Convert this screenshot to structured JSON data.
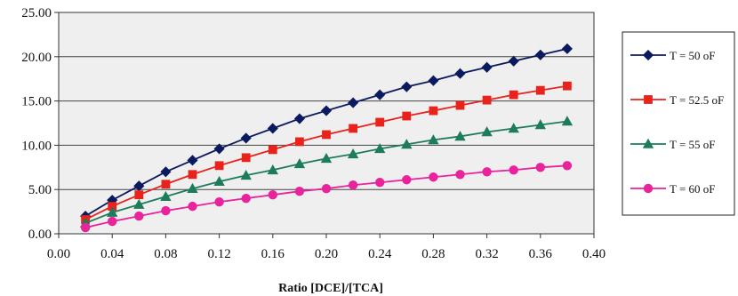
{
  "chart_data": {
    "type": "line",
    "title": "",
    "xlabel": "Ratio [DCE]/[TCA]",
    "ylabel": "",
    "xlim": [
      0.0,
      0.4
    ],
    "ylim": [
      0.0,
      25.0
    ],
    "x_ticks": [
      "0.00",
      "0.04",
      "0.08",
      "0.12",
      "0.16",
      "0.20",
      "0.24",
      "0.28",
      "0.32",
      "0.36",
      "0.40"
    ],
    "y_ticks": [
      "0.00",
      "5.00",
      "10.00",
      "15.00",
      "20.00",
      "25.00"
    ],
    "grid": "horizontal",
    "legend_position": "right",
    "x": [
      0.02,
      0.04,
      0.06,
      0.08,
      0.1,
      0.12,
      0.14,
      0.16,
      0.18,
      0.2,
      0.22,
      0.24,
      0.26,
      0.28,
      0.3,
      0.32,
      0.34,
      0.36,
      0.38
    ],
    "series": [
      {
        "name": "T = 50 oF",
        "color": "#0b1a5e",
        "marker": "diamond",
        "values": [
          2.0,
          3.8,
          5.4,
          7.0,
          8.3,
          9.6,
          10.8,
          11.9,
          13.0,
          13.9,
          14.8,
          15.7,
          16.6,
          17.3,
          18.1,
          18.8,
          19.5,
          20.2,
          20.9
        ]
      },
      {
        "name": "T = 52.5 oF",
        "color": "#e8231c",
        "marker": "square",
        "values": [
          1.6,
          3.1,
          4.4,
          5.6,
          6.7,
          7.7,
          8.6,
          9.5,
          10.4,
          11.2,
          11.9,
          12.6,
          13.3,
          13.9,
          14.5,
          15.1,
          15.7,
          16.2,
          16.7
        ]
      },
      {
        "name": "T = 55 oF",
        "color": "#1d7c5a",
        "marker": "triangle",
        "values": [
          1.2,
          2.4,
          3.3,
          4.2,
          5.1,
          5.9,
          6.6,
          7.2,
          7.9,
          8.5,
          9.0,
          9.6,
          10.1,
          10.6,
          11.0,
          11.5,
          11.9,
          12.3,
          12.7
        ]
      },
      {
        "name": "T = 60 oF",
        "color": "#e8239b",
        "marker": "circle",
        "values": [
          0.7,
          1.4,
          2.0,
          2.6,
          3.1,
          3.6,
          4.0,
          4.4,
          4.8,
          5.1,
          5.5,
          5.8,
          6.1,
          6.4,
          6.7,
          7.0,
          7.2,
          7.5,
          7.7
        ]
      }
    ]
  }
}
